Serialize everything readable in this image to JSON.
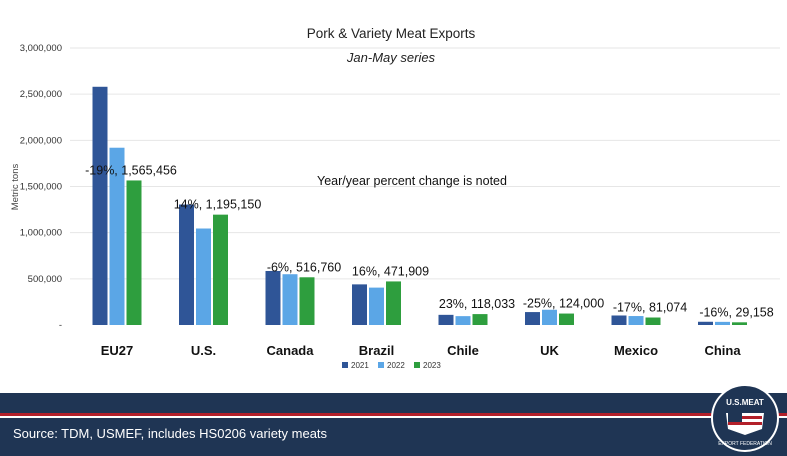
{
  "chart_data": {
    "type": "bar",
    "title": "Pork & Variety Meat Exports",
    "subtitle": "Jan-May series",
    "ylabel": "Metric tons",
    "xlabel": "",
    "ylim": [
      0,
      3000000
    ],
    "yticks": [
      "-",
      "500,000",
      "1,000,000",
      "1,500,000",
      "2,000,000",
      "2,500,000",
      "3,000,000"
    ],
    "categories": [
      "EU27",
      "U.S.",
      "Canada",
      "Brazil",
      "Chile",
      "UK",
      "Mexico",
      "China"
    ],
    "series": [
      {
        "name": "2021",
        "color": "#2f5597",
        "values": [
          2580000,
          1305000,
          585000,
          440000,
          110000,
          140000,
          103000,
          35000
        ]
      },
      {
        "name": "2022",
        "color": "#5ba6e6",
        "values": [
          1920000,
          1045000,
          550000,
          405000,
          96000,
          165000,
          97000,
          34000
        ]
      },
      {
        "name": "2023",
        "color": "#2e9e3e",
        "values": [
          1565456,
          1195150,
          516760,
          471909,
          118033,
          124000,
          81074,
          29158
        ]
      }
    ],
    "annotations": [
      "-19%, 1,565,456",
      "14%, 1,195,150",
      "-6%, 516,760",
      "16%, 471,909",
      "23%, 118,033",
      "-25%, 124,000",
      "-17%, 81,074",
      "-16%, 29,158"
    ],
    "note": "Year/year percent change is noted",
    "grid": true,
    "legend_position": "bottom"
  },
  "footer": {
    "source": "Source: TDM, USMEF, includes HS0206 variety meats",
    "logo_text_top": "U.S.MEAT",
    "logo_text_bottom": "EXPORT FEDERATION"
  },
  "colors": {
    "footer_navy": "#1f3554",
    "footer_red": "#b3202a"
  }
}
